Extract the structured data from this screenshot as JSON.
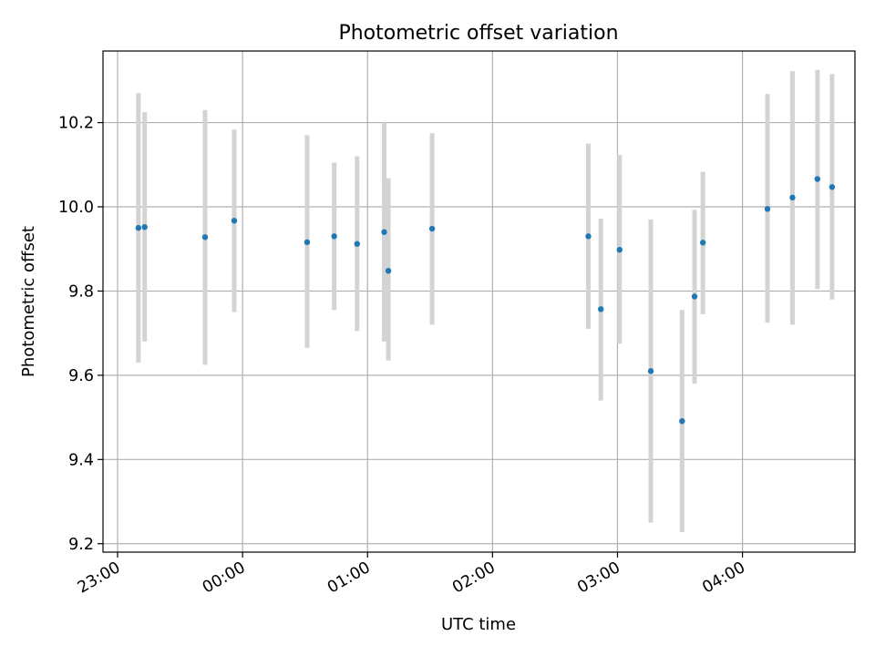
{
  "chart_data": {
    "type": "scatter",
    "title": "Photometric offset variation",
    "xlabel": "UTC time",
    "ylabel": "Photometric offset",
    "x_ticks": [
      "23:00",
      "00:00",
      "01:00",
      "02:00",
      "03:00",
      "04:00"
    ],
    "y_ticks": [
      "9.2",
      "9.4",
      "9.6",
      "9.8",
      "10.0",
      "10.2"
    ],
    "xlim": [
      "22:53",
      "04:54"
    ],
    "ylim": [
      9.18,
      10.37
    ],
    "grid": true,
    "colors": {
      "point": "#1f77b4",
      "errorbar": "#d3d3d3",
      "grid": "#b0b0b0"
    },
    "series": [
      {
        "points": [
          {
            "x": "23:10",
            "y": 9.95,
            "ylow": 9.63,
            "yhigh": 10.27
          },
          {
            "x": "23:13",
            "y": 9.952,
            "ylow": 9.68,
            "yhigh": 10.225
          },
          {
            "x": "23:42",
            "y": 9.928,
            "ylow": 9.625,
            "yhigh": 10.23
          },
          {
            "x": "23:56",
            "y": 9.967,
            "ylow": 9.75,
            "yhigh": 10.183
          },
          {
            "x": "00:31",
            "y": 9.916,
            "ylow": 9.665,
            "yhigh": 10.17
          },
          {
            "x": "00:44",
            "y": 9.93,
            "ylow": 9.755,
            "yhigh": 10.105
          },
          {
            "x": "00:55",
            "y": 9.912,
            "ylow": 9.705,
            "yhigh": 10.12
          },
          {
            "x": "01:08",
            "y": 9.94,
            "ylow": 9.68,
            "yhigh": 10.2
          },
          {
            "x": "01:10",
            "y": 9.848,
            "ylow": 9.635,
            "yhigh": 10.068
          },
          {
            "x": "01:31",
            "y": 9.948,
            "ylow": 9.72,
            "yhigh": 10.175
          },
          {
            "x": "02:46",
            "y": 9.93,
            "ylow": 9.71,
            "yhigh": 10.15
          },
          {
            "x": "02:52",
            "y": 9.757,
            "ylow": 9.54,
            "yhigh": 9.972
          },
          {
            "x": "03:01",
            "y": 9.898,
            "ylow": 9.675,
            "yhigh": 10.123
          },
          {
            "x": "03:16",
            "y": 9.61,
            "ylow": 9.25,
            "yhigh": 9.97
          },
          {
            "x": "03:31",
            "y": 9.491,
            "ylow": 9.228,
            "yhigh": 9.755
          },
          {
            "x": "03:37",
            "y": 9.787,
            "ylow": 9.58,
            "yhigh": 9.993
          },
          {
            "x": "03:41",
            "y": 9.915,
            "ylow": 9.745,
            "yhigh": 10.083
          },
          {
            "x": "04:12",
            "y": 9.995,
            "ylow": 9.725,
            "yhigh": 10.268
          },
          {
            "x": "04:24",
            "y": 10.022,
            "ylow": 9.72,
            "yhigh": 10.322
          },
          {
            "x": "04:36",
            "y": 10.066,
            "ylow": 9.805,
            "yhigh": 10.325
          },
          {
            "x": "04:43",
            "y": 10.047,
            "ylow": 9.78,
            "yhigh": 10.315
          }
        ]
      }
    ]
  }
}
